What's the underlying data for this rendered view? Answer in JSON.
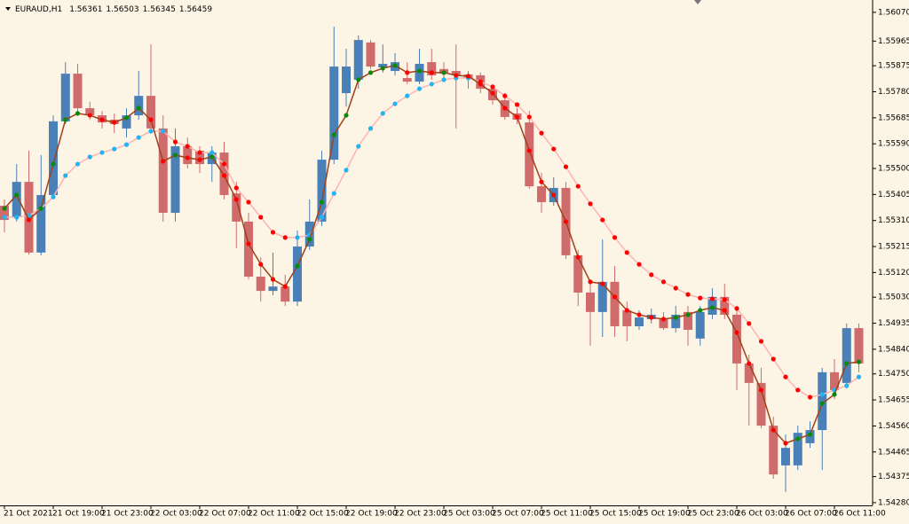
{
  "chart_data": {
    "type": "candlestick",
    "symbol": "EURAUD,H1",
    "header_ohlc": [
      1.56361,
      1.56503,
      1.56345,
      1.56459
    ],
    "up_color": "#4a80b8",
    "down_color": "#cf6b6b",
    "ylim": [
      1.5427,
      1.56115
    ],
    "yticks": [
      {
        "value": 1.5607,
        "label": "1.56070"
      },
      {
        "value": 1.55965,
        "label": "1.55965"
      },
      {
        "value": 1.55875,
        "label": "1.55875"
      },
      {
        "value": 1.5578,
        "label": "1.55780"
      },
      {
        "value": 1.55685,
        "label": "1.55685"
      },
      {
        "value": 1.5559,
        "label": "1.55590"
      },
      {
        "value": 1.555,
        "label": "1.55500"
      },
      {
        "value": 1.55405,
        "label": "1.55405"
      },
      {
        "value": 1.5531,
        "label": "1.55310"
      },
      {
        "value": 1.55215,
        "label": "1.55215"
      },
      {
        "value": 1.5512,
        "label": "1.55120"
      },
      {
        "value": 1.5503,
        "label": "1.55030"
      },
      {
        "value": 1.54935,
        "label": "1.54935"
      },
      {
        "value": 1.5484,
        "label": "1.54840"
      },
      {
        "value": 1.5475,
        "label": "1.54750"
      },
      {
        "value": 1.54655,
        "label": "1.54655"
      },
      {
        "value": 1.5456,
        "label": "1.54560"
      },
      {
        "value": 1.54465,
        "label": "1.54465"
      },
      {
        "value": 1.54375,
        "label": "1.54375"
      },
      {
        "value": 1.5428,
        "label": "1.54280"
      }
    ],
    "categories": [
      "21 Oct 2021",
      null,
      null,
      null,
      "21 Oct 19:00",
      null,
      null,
      null,
      "21 Oct 23:00",
      null,
      null,
      null,
      "22 Oct 03:00",
      null,
      null,
      null,
      "22 Oct 07:00",
      null,
      null,
      null,
      "22 Oct 11:00",
      null,
      null,
      null,
      "22 Oct 15:00",
      null,
      null,
      null,
      "22 Oct 19:00",
      null,
      null,
      null,
      "22 Oct 23:00",
      null,
      null,
      null,
      "25 Oct 03:00",
      null,
      null,
      null,
      "25 Oct 07:00",
      null,
      null,
      null,
      "25 Oct 11:00",
      null,
      null,
      null,
      "25 Oct 15:00",
      null,
      null,
      null,
      "25 Oct 19:00",
      null,
      null,
      null,
      "25 Oct 23:00",
      null,
      null,
      null,
      "26 Oct 03:00",
      null,
      null,
      null,
      "26 Oct 07:00",
      null,
      null,
      null,
      "26 Oct 11:00",
      null,
      null
    ],
    "open": [
      1.55364,
      1.55322,
      1.55451,
      1.55193,
      1.55403,
      1.55672,
      1.55846,
      1.5572,
      1.55694,
      1.55678,
      1.55646,
      1.55694,
      1.55765,
      1.55646,
      1.55338,
      1.55581,
      1.55565,
      1.55516,
      1.55558,
      1.55409,
      1.55306,
      1.55105,
      1.55053,
      1.55069,
      1.55014,
      1.55215,
      1.55306,
      1.55532,
      1.55775,
      1.55824,
      1.5596,
      1.55869,
      1.55856,
      1.5583,
      1.55817,
      1.55888,
      1.55863,
      1.55856,
      1.55843,
      1.5584,
      1.55791,
      1.55749,
      1.55701,
      1.55668,
      1.55435,
      1.55377,
      1.55429,
      1.55183,
      1.55047,
      1.54976,
      1.55086,
      1.54982,
      1.54924,
      1.5495,
      1.5495,
      1.54917,
      1.54976,
      1.54879,
      1.54966,
      1.55031,
      1.54966,
      1.54788,
      1.54717,
      1.54561,
      1.54416,
      1.54416,
      1.54497,
      1.54545,
      1.54756,
      1.54717,
      1.54917
    ],
    "high": [
      1.55387,
      1.55516,
      1.55565,
      1.55549,
      1.55694,
      1.55888,
      1.55882,
      1.55743,
      1.5571,
      1.55701,
      1.5572,
      1.55856,
      1.55953,
      1.55694,
      1.55646,
      1.55613,
      1.55581,
      1.55581,
      1.55597,
      1.55451,
      1.55338,
      1.55176,
      1.55193,
      1.55112,
      1.55273,
      1.55387,
      1.55565,
      1.56018,
      1.55937,
      1.55986,
      1.55969,
      1.55953,
      1.55921,
      1.55888,
      1.55937,
      1.55937,
      1.55888,
      1.55953,
      1.55856,
      1.5585,
      1.55808,
      1.55775,
      1.5572,
      1.5571,
      1.55484,
      1.55468,
      1.55451,
      1.55202,
      1.55079,
      1.55241,
      1.55144,
      1.55014,
      1.54982,
      1.54989,
      1.54976,
      1.54998,
      1.54998,
      1.54998,
      1.55063,
      1.55079,
      1.54998,
      1.5482,
      1.54772,
      1.54594,
      1.54529,
      1.54561,
      1.54577,
      1.54772,
      1.54804,
      1.54934,
      1.54934
    ],
    "low": [
      1.55267,
      1.55306,
      1.55186,
      1.55183,
      1.55396,
      1.55662,
      1.55694,
      1.55678,
      1.55646,
      1.55629,
      1.55613,
      1.55678,
      1.55629,
      1.55306,
      1.55306,
      1.555,
      1.55484,
      1.55451,
      1.55387,
      1.55209,
      1.55095,
      1.55014,
      1.55037,
      1.54998,
      1.54998,
      1.55202,
      1.5529,
      1.55516,
      1.55726,
      1.55791,
      1.55863,
      1.5585,
      1.5584,
      1.55808,
      1.55808,
      1.55824,
      1.55824,
      1.55646,
      1.55791,
      1.55775,
      1.55733,
      1.55678,
      1.55662,
      1.55426,
      1.55338,
      1.55364,
      1.5517,
      1.54998,
      1.54853,
      1.54885,
      1.54885,
      1.54869,
      1.54911,
      1.54934,
      1.54911,
      1.54901,
      1.54853,
      1.54853,
      1.5495,
      1.5495,
      1.54691,
      1.54561,
      1.54552,
      1.54367,
      1.54319,
      1.54399,
      1.5448,
      1.54399,
      1.54658,
      1.54697,
      1.54756
    ],
    "close": [
      1.55312,
      1.55451,
      1.55193,
      1.55403,
      1.55672,
      1.55846,
      1.5572,
      1.55694,
      1.55668,
      1.55662,
      1.55694,
      1.55765,
      1.55646,
      1.55338,
      1.55581,
      1.55516,
      1.55516,
      1.55558,
      1.55403,
      1.55306,
      1.55105,
      1.55053,
      1.55069,
      1.55014,
      1.55215,
      1.55306,
      1.55532,
      1.55872,
      1.55872,
      1.55969,
      1.55872,
      1.55882,
      1.55888,
      1.55817,
      1.55882,
      1.5584,
      1.55846,
      1.5584,
      1.5583,
      1.55791,
      1.55749,
      1.55688,
      1.55678,
      1.55435,
      1.55377,
      1.55429,
      1.55183,
      1.55047,
      1.54976,
      1.55086,
      1.54924,
      1.54924,
      1.54956,
      1.54966,
      1.54917,
      1.54966,
      1.54911,
      1.54976,
      1.55031,
      1.54966,
      1.54788,
      1.54717,
      1.54561,
      1.54383,
      1.5448,
      1.54535,
      1.54545,
      1.54756,
      1.54691,
      1.54917,
      1.54788
    ],
    "overlays": [
      {
        "color": "#ffb3b3",
        "up_dot_color": "#22b4ee",
        "down_dot_color": "#ff0000",
        "values": [
          1.55322,
          1.55322,
          1.55328,
          1.55354,
          1.55396,
          1.55474,
          1.55516,
          1.55542,
          1.55558,
          1.55571,
          1.55587,
          1.55613,
          1.55636,
          1.55636,
          1.55597,
          1.55581,
          1.55558,
          1.55558,
          1.55516,
          1.55429,
          1.55377,
          1.55322,
          1.55267,
          1.55248,
          1.55248,
          1.55257,
          1.55322,
          1.55409,
          1.55494,
          1.55581,
          1.55646,
          1.55701,
          1.55736,
          1.55765,
          1.55791,
          1.55808,
          1.55824,
          1.5583,
          1.5583,
          1.55817,
          1.55798,
          1.55765,
          1.55733,
          1.55688,
          1.55629,
          1.55571,
          1.55506,
          1.55435,
          1.55371,
          1.55312,
          1.55248,
          1.55193,
          1.5515,
          1.55112,
          1.55086,
          1.55063,
          1.5504,
          1.55027,
          1.55024,
          1.55021,
          1.54989,
          1.54934,
          1.54869,
          1.54804,
          1.54739,
          1.54691,
          1.54665,
          1.54675,
          1.54691,
          1.54707,
          1.54739
        ]
      },
      {
        "color": "#a0401a",
        "up_dot_color": "#0a8a0a",
        "down_dot_color": "#ff0000",
        "values": [
          1.55354,
          1.55403,
          1.55312,
          1.55354,
          1.55516,
          1.55678,
          1.55701,
          1.55694,
          1.55678,
          1.55668,
          1.55685,
          1.5572,
          1.55678,
          1.55526,
          1.55549,
          1.55539,
          1.55532,
          1.55542,
          1.55474,
          1.55387,
          1.55225,
          1.5515,
          1.55095,
          1.55069,
          1.55144,
          1.55241,
          1.55377,
          1.55623,
          1.55694,
          1.55824,
          1.5585,
          1.55866,
          1.55876,
          1.5585,
          1.55856,
          1.5585,
          1.5585,
          1.5584,
          1.55837,
          1.55808,
          1.55775,
          1.5572,
          1.55688,
          1.55565,
          1.55451,
          1.55403,
          1.55306,
          1.55176,
          1.55086,
          1.55079,
          1.55031,
          1.54982,
          1.54966,
          1.54956,
          1.5495,
          1.54956,
          1.54966,
          1.54982,
          1.54992,
          1.54982,
          1.54901,
          1.54788,
          1.54691,
          1.54545,
          1.54497,
          1.54513,
          1.54529,
          1.54642,
          1.54675,
          1.54788,
          1.54794
        ]
      }
    ]
  }
}
